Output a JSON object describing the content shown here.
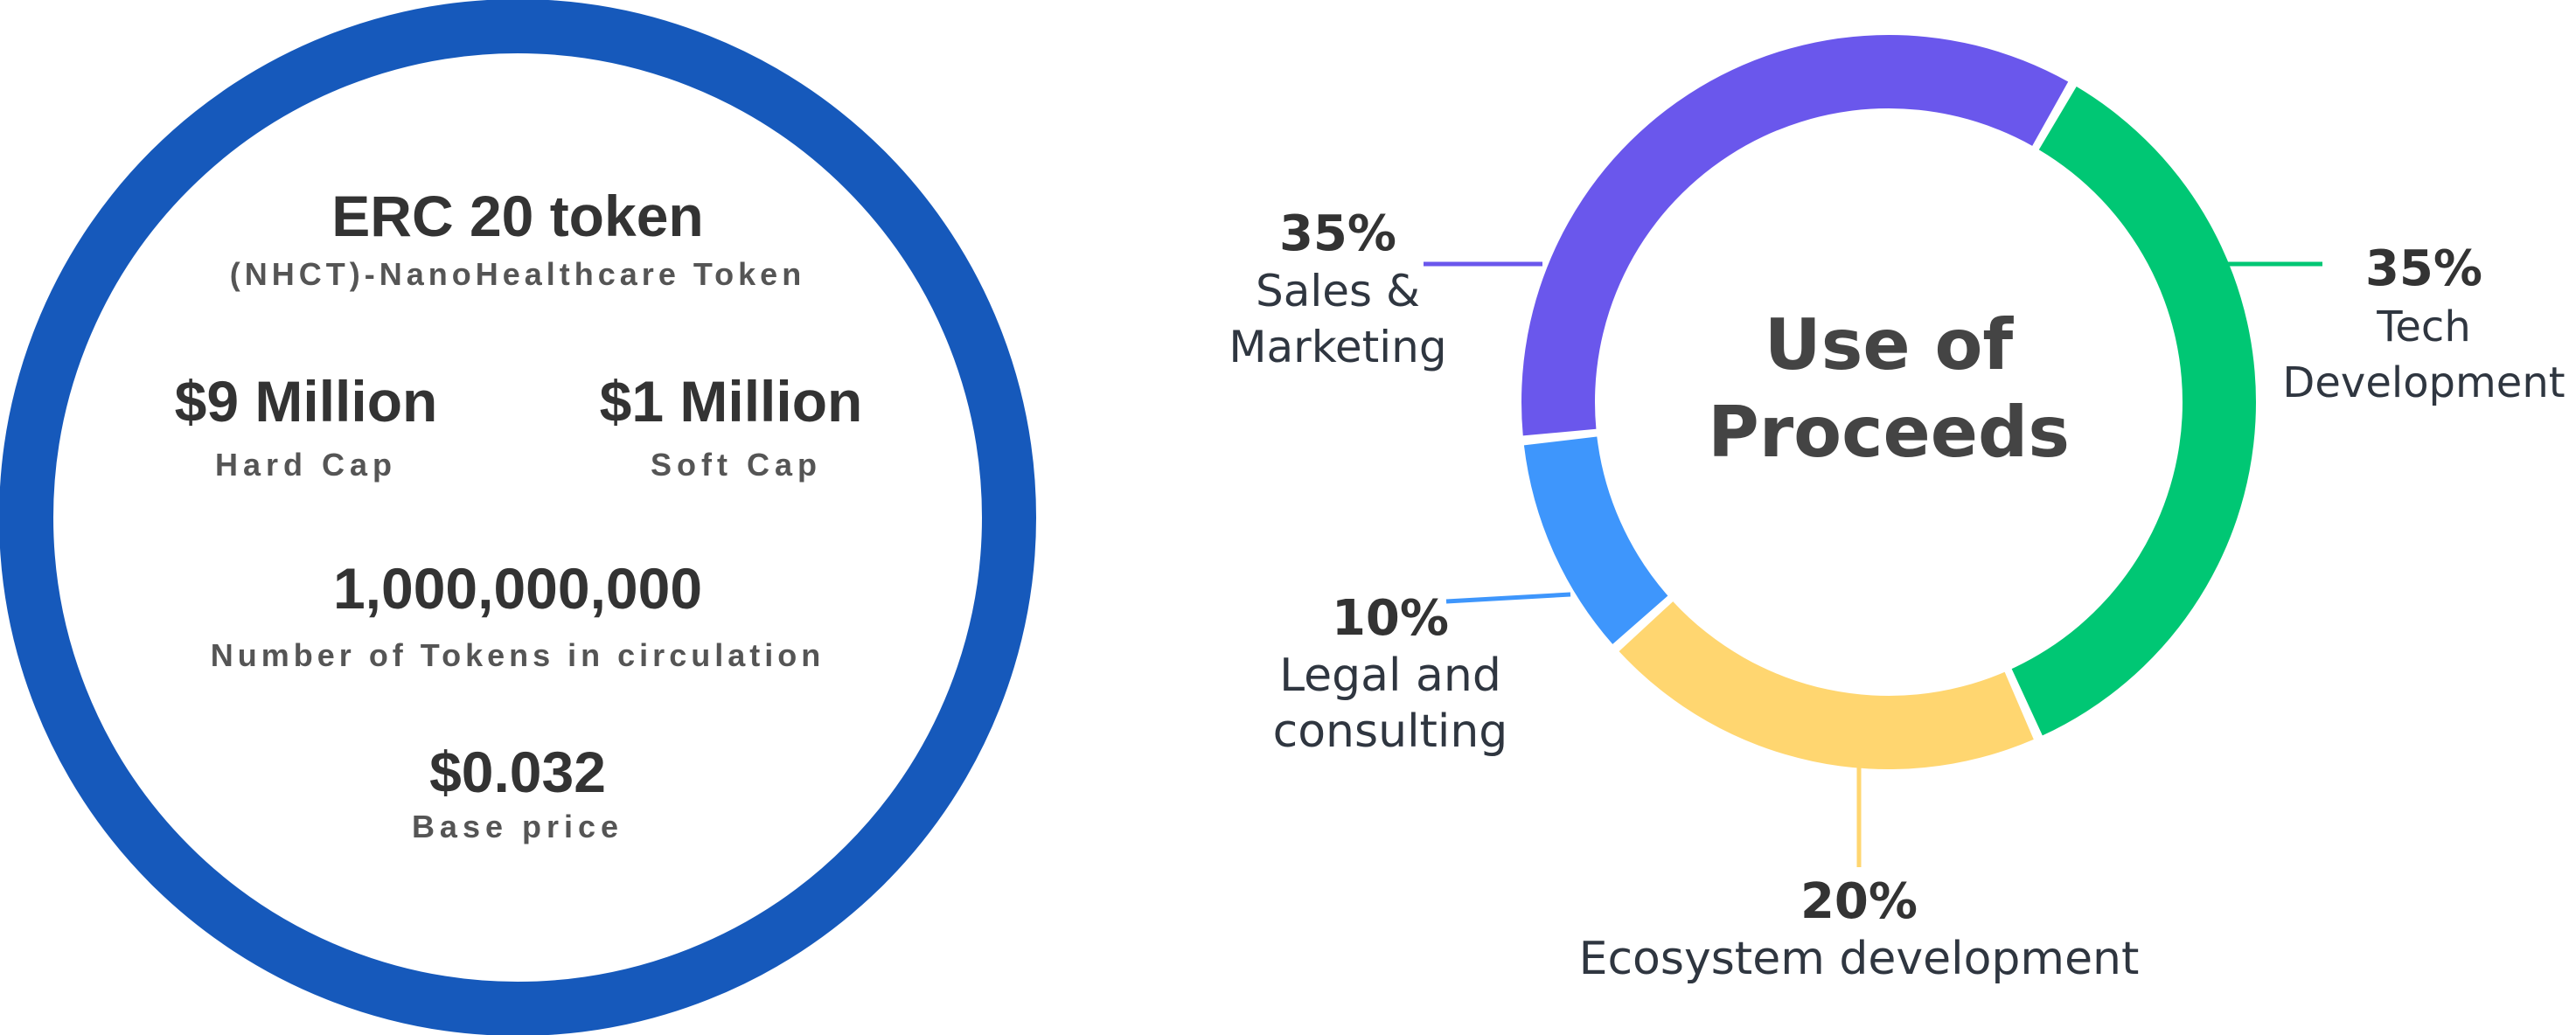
{
  "info": {
    "ring_color": "#1659BB",
    "title": "ERC 20 token",
    "subtitle": "(NHCT)-NanoHealthcare Token",
    "hard_cap": {
      "value": "$9 Million",
      "label": "Hard Cap"
    },
    "soft_cap": {
      "value": "$1 Million",
      "label": "Soft Cap"
    },
    "tokens": {
      "value": "1,000,000,000",
      "label": "Number of Tokens in circulation"
    },
    "price": {
      "value": "$0.032",
      "label": "Base price"
    }
  },
  "chart_data": {
    "type": "pie",
    "variant": "donut",
    "title": "Use of Proceeds",
    "title_lines": [
      "Use of",
      "Proceeds"
    ],
    "unit": "%",
    "slices": [
      {
        "value_label": "35%",
        "value": 35,
        "label_lines": [
          "Tech",
          "Development"
        ],
        "color": "#00C774"
      },
      {
        "value_label": "20%",
        "value": 20,
        "label_lines": [
          "Ecosystem development"
        ],
        "color": "#FFD670"
      },
      {
        "value_label": "10%",
        "value": 10,
        "label_lines": [
          "Legal and",
          "consulting"
        ],
        "color": "#3E96FC"
      },
      {
        "value_label": "35%",
        "value": 35,
        "label_lines": [
          "Sales &",
          "Marketing"
        ],
        "color": "#6A57EC"
      }
    ]
  }
}
